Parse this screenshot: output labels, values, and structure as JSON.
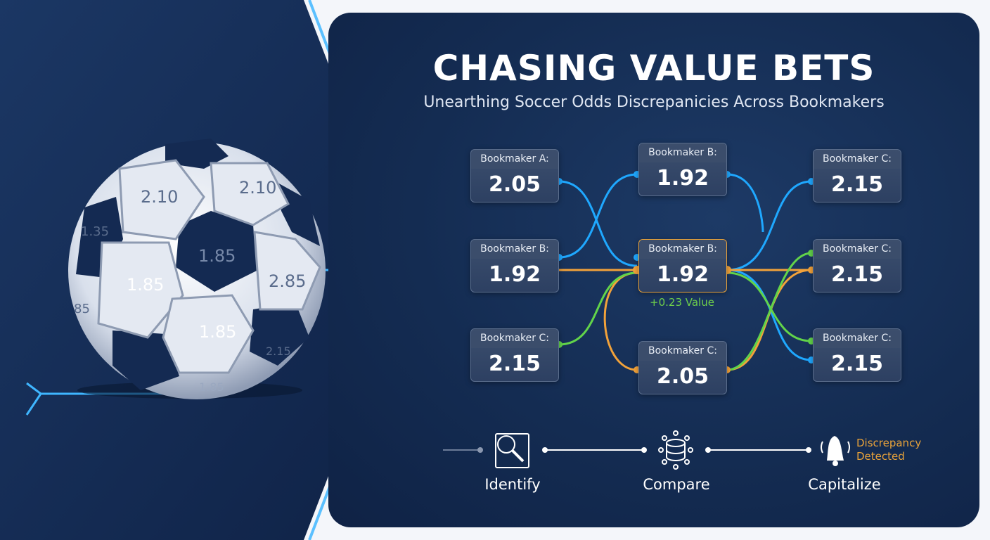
{
  "header": {
    "title": "CHASING VALUE BETS",
    "subtitle": "Unearthing Soccer Odds Discrepanicies Across Bookmakers"
  },
  "ball": {
    "labels": [
      "2.10",
      "2.10",
      "1.35",
      "1.85",
      "1.85",
      "2.85",
      "1.85",
      "85",
      "2.15",
      "1.85"
    ]
  },
  "nodes": [
    {
      "label": "Bookmaker A:",
      "value": "2.05"
    },
    {
      "label": "Bookmaker B:",
      "value": "1.92"
    },
    {
      "label": "Bookmaker C:",
      "value": "2.15"
    },
    {
      "label": "Bookmaker B:",
      "value": "1.92"
    },
    {
      "label": "Bookmaker B:",
      "value": "1.92"
    },
    {
      "label": "Bookmaker C:",
      "value": "2.05"
    },
    {
      "label": "Bookmaker C:",
      "value": "2.15"
    },
    {
      "label": "Bookmaker C:",
      "value": "2.15"
    },
    {
      "label": "Bookmaker C:",
      "value": "2.15"
    }
  ],
  "value_tag": "+0.23 Value",
  "steps": [
    {
      "label": "Identify",
      "icon": "magnifier-document-icon"
    },
    {
      "label": "Compare",
      "icon": "database-network-icon"
    },
    {
      "label": "Capitalize",
      "icon": "bell-alert-icon"
    }
  ],
  "alert": {
    "line1": "Discrepancy",
    "line2": "Detected"
  },
  "colors": {
    "blue": "#1fa8ff",
    "orange": "#f2a23a",
    "green": "#62d44a",
    "panel": "#142c52",
    "accent_text": "#e8a23a"
  }
}
